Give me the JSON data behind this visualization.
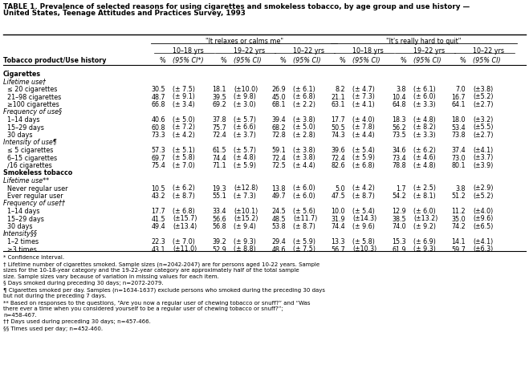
{
  "title": "TABLE 1. Prevalence of selected reasons for using cigarettes and smokeless tobacco, by age group and use history — United States, Teenage Attitudes and Practices Survey, 1993",
  "col_group1": "\"It relaxes or calms me\"",
  "col_group2": "\"It's really hard to quit\"",
  "subgroups": [
    "10–18 yrs",
    "19–22 yrs",
    "10–22 yrs",
    "10–18 yrs",
    "19–22 yrs",
    "10–22 yrs"
  ],
  "col_headers": [
    "%",
    "(95% CI*)",
    "%",
    "(95% CI)",
    "%",
    "(95% CI)",
    "%",
    "(95% CI)",
    "%",
    "(95% CI)",
    "%",
    "(95% CI)"
  ],
  "row_header": "Tobacco product/Use history",
  "rows": [
    {
      "label": "Cigarettes",
      "indent": 0,
      "bold": true,
      "values": null
    },
    {
      "label": "Lifetime use†",
      "indent": 1,
      "italic": true,
      "values": null
    },
    {
      "label": "  ≤ 20 cigarettes",
      "indent": 2,
      "values": [
        "30.5",
        "(± 7.5)",
        "18.1",
        "(±10.0)",
        "26.9",
        "(± 6.1)",
        "8.2",
        "(± 4.7)",
        "3.8",
        "(± 6.1)",
        "7.0",
        "(±3.8)"
      ]
    },
    {
      "label": "  21–98 cigarettes",
      "indent": 2,
      "values": [
        "48.7",
        "(± 9.1)",
        "39.5",
        "(± 9.8)",
        "45.0",
        "(± 6.8)",
        "21.1",
        "(± 7.3)",
        "10.4",
        "(± 6.0)",
        "16.7",
        "(±5.2)"
      ]
    },
    {
      "label": "  ≥100 cigarettes",
      "indent": 2,
      "values": [
        "66.8",
        "(± 3.4)",
        "69.2",
        "(± 3.0)",
        "68.1",
        "(± 2.2)",
        "63.1",
        "(± 4.1)",
        "64.8",
        "(± 3.3)",
        "64.1",
        "(±2.7)"
      ]
    },
    {
      "label": "Frequency of use§",
      "indent": 1,
      "italic": true,
      "values": null
    },
    {
      "label": "  1–14 days",
      "indent": 2,
      "values": [
        "40.6",
        "(± 5.0)",
        "37.8",
        "(± 5.7)",
        "39.4",
        "(± 3.8)",
        "17.7",
        "(± 4.0)",
        "18.3",
        "(± 4.8)",
        "18.0",
        "(±3.2)"
      ]
    },
    {
      "label": "  15–29 days",
      "indent": 2,
      "values": [
        "60.8",
        "(± 7.2)",
        "75.7",
        "(± 6.6)",
        "68.2",
        "(± 5.0)",
        "50.5",
        "(± 7.8)",
        "56.2",
        "(± 8.2)",
        "53.4",
        "(±5.5)"
      ]
    },
    {
      "label": "  30 days",
      "indent": 2,
      "values": [
        "73.3",
        "(± 4.2)",
        "72.4",
        "(± 3.7)",
        "72.8",
        "(± 2.8)",
        "74.3",
        "(± 4.4)",
        "73.5",
        "(± 3.3)",
        "73.8",
        "(±2.7)"
      ]
    },
    {
      "label": "Intensity of use¶",
      "indent": 1,
      "italic": true,
      "values": null
    },
    {
      "label": "  ≤ 5 cigarettes",
      "indent": 2,
      "values": [
        "57.3",
        "(± 5.1)",
        "61.5",
        "(± 5.7)",
        "59.1",
        "(± 3.8)",
        "39.6",
        "(± 5.4)",
        "34.6",
        "(± 6.2)",
        "37.4",
        "(±4.1)"
      ]
    },
    {
      "label": "  6–15 cigarettes",
      "indent": 2,
      "values": [
        "69.7",
        "(± 5.8)",
        "74.4",
        "(± 4.8)",
        "72.4",
        "(± 3.8)",
        "72.4",
        "(± 5.9)",
        "73.4",
        "(± 4.6)",
        "73.0",
        "(±3.7)"
      ]
    },
    {
      "label": "  ∕16 cigarettes",
      "indent": 2,
      "values": [
        "75.4",
        "(± 7.0)",
        "71.1",
        "(± 5.9)",
        "72.5",
        "(± 4.4)",
        "82.6",
        "(± 6.8)",
        "78.8",
        "(± 4.8)",
        "80.1",
        "(±3.9)"
      ]
    },
    {
      "label": "Smokeless tobacco",
      "indent": 0,
      "bold": true,
      "values": null
    },
    {
      "label": "Lifetime use**",
      "indent": 1,
      "italic": true,
      "values": null
    },
    {
      "label": "  Never regular user",
      "indent": 2,
      "values": [
        "10.5",
        "(± 6.2)",
        "19.3",
        "(±12.8)",
        "13.8",
        "(± 6.0)",
        "5.0",
        "(± 4.2)",
        "1.7",
        "(± 2.5)",
        "3.8",
        "(±2.9)"
      ]
    },
    {
      "label": "  Ever regular user",
      "indent": 2,
      "values": [
        "43.2",
        "(± 8.7)",
        "55.1",
        "(± 7.3)",
        "49.7",
        "(± 6.0)",
        "47.5",
        "(± 8.7)",
        "54.2",
        "(± 8.1)",
        "51.2",
        "(±5.2)"
      ]
    },
    {
      "label": "Frequency of use††",
      "indent": 1,
      "italic": true,
      "values": null
    },
    {
      "label": "  1–14 days",
      "indent": 2,
      "values": [
        "17.7",
        "(± 6.8)",
        "33.4",
        "(±10.1)",
        "24.5",
        "(± 5.6)",
        "10.0",
        "(± 5.4)",
        "12.9",
        "(± 6.0)",
        "11.2",
        "(±4.0)"
      ]
    },
    {
      "label": "  15–29 days",
      "indent": 2,
      "values": [
        "41.5",
        "(±15.7)",
        "56.6",
        "(±15.2)",
        "48.5",
        "(±11.7)",
        "31.9",
        "(±14.3)",
        "38.5",
        "(±13.2)",
        "35.0",
        "(±9.6)"
      ]
    },
    {
      "label": "  30 days",
      "indent": 2,
      "values": [
        "49.4",
        "(±13.4)",
        "56.8",
        "(± 9.4)",
        "53.8",
        "(± 8.7)",
        "74.4",
        "(± 9.6)",
        "74.0",
        "(± 9.2)",
        "74.2",
        "(±6.5)"
      ]
    },
    {
      "label": "Intensity§§",
      "indent": 1,
      "italic": true,
      "values": null
    },
    {
      "label": "  1–2 times",
      "indent": 2,
      "values": [
        "22.3",
        "(± 7.0)",
        "39.2",
        "(± 9.3)",
        "29.4",
        "(± 5.9)",
        "13.3",
        "(± 5.8)",
        "15.3",
        "(± 6.9)",
        "14.1",
        "(±4.1)"
      ]
    },
    {
      "label": "  ≥3 times",
      "indent": 2,
      "values": [
        "43.1",
        "(±11.0)",
        "52.9",
        "(± 8.8)",
        "48.6",
        "(± 7.5)",
        "56.7",
        "(±10.3)",
        "61.9",
        "(± 9.3)",
        "59.7",
        "(±6.3)"
      ]
    }
  ],
  "footnotes": [
    "* Confidence Interval.",
    "† Lifetime number of cigarettes smoked. Sample sizes (n=2042-2047) are for persons aged 10-22 years. Sample sizes for the 10-18-year category and the 19-22-year category are approximately half of the total sample size. Sample sizes vary because of variation in missing values for each item.",
    "§ Days smoked during preceding 30 days; n=2072-2079.",
    "¶ Cigarettes smoked per day. Samples (n=1634-1637) exclude persons who smoked during the preceding 30 days but not during the preceding 7 days.",
    "** Based on responses to the questions, “Are you now a regular user of chewing tobacco or snuff?” and “Was there ever a time when you considered yourself to be a regular user of chewing tobacco or snuff?”; n=458-467.",
    "†† Days used during preceding 30 days; n=457-466.",
    "§§ Times used per day; n=452-460."
  ],
  "fig_width": 6.59,
  "fig_height": 4.7,
  "dpi": 100,
  "body_fontsize": 5.8,
  "header_fontsize": 5.8,
  "title_fontsize": 6.3,
  "footnote_fontsize": 5.0
}
